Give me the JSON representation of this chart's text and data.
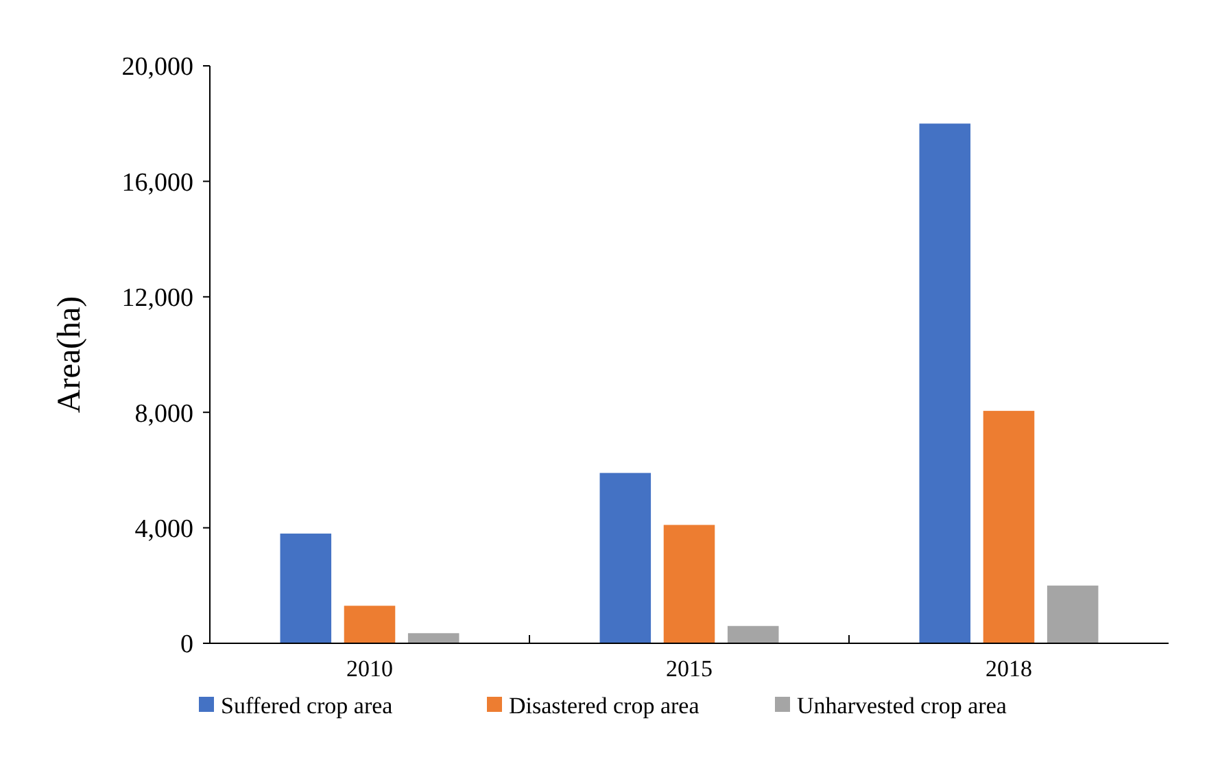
{
  "chart_data": {
    "type": "bar",
    "ylabel": "Area(ha)",
    "categories": [
      "2010",
      "2015",
      "2018"
    ],
    "series": [
      {
        "name": "Suffered crop area",
        "color": "#4472c4",
        "values": [
          3800,
          5900,
          18000
        ]
      },
      {
        "name": "Disastered crop area",
        "color": "#ed7d31",
        "values": [
          1300,
          4100,
          8050
        ]
      },
      {
        "name": "Unharvested crop area",
        "color": "#a5a5a5",
        "values": [
          350,
          600,
          2000
        ]
      }
    ],
    "ylim": [
      0,
      20000
    ],
    "yticks": [
      0,
      {
        "value": 4000,
        "label": "4,000"
      },
      {
        "value": 8000,
        "label": "8,000"
      },
      {
        "value": 12000,
        "label": "12,000"
      },
      {
        "value": 16000,
        "label": "16,000"
      },
      {
        "value": 20000,
        "label": "20,000"
      }
    ],
    "grid": false,
    "legend": "bottom"
  }
}
